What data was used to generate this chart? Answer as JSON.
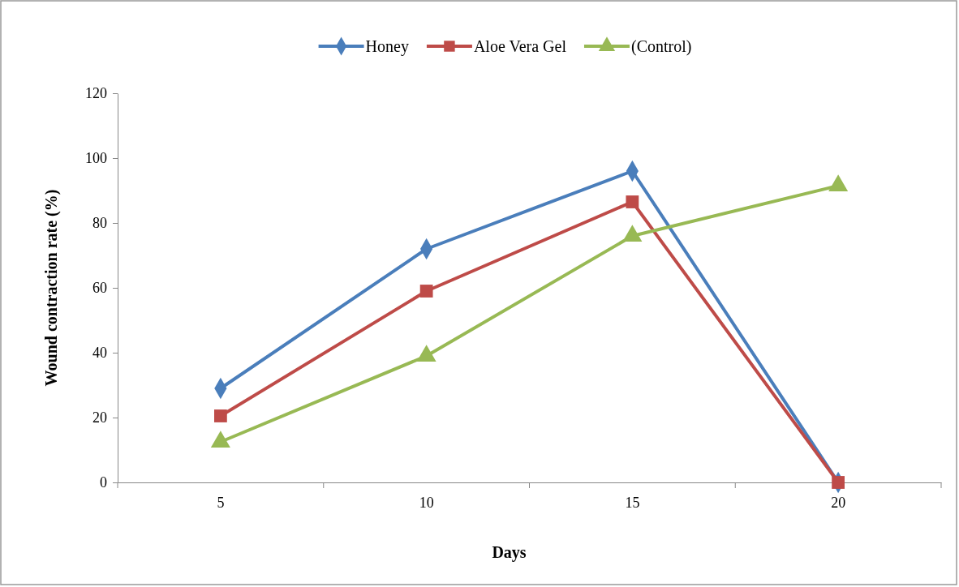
{
  "chart_data": {
    "type": "line",
    "xlabel": "Days",
    "ylabel": "Wound contraction rate (%)",
    "categories": [
      "5",
      "10",
      "15",
      "20"
    ],
    "series": [
      {
        "name": "Honey",
        "color": "#4a7ebb",
        "marker": "diamond",
        "values": [
          29,
          72,
          96,
          0
        ]
      },
      {
        "name": "Aloe Vera Gel",
        "color": "#be4b48",
        "marker": "square",
        "values": [
          20.5,
          59,
          86.5,
          0
        ]
      },
      {
        "name": "(Control)",
        "color": "#98b954",
        "marker": "triangle",
        "values": [
          12.5,
          39,
          76,
          91.5
        ]
      }
    ],
    "ylim": [
      0,
      120
    ],
    "yticks": [
      0,
      20,
      40,
      60,
      80,
      100,
      120
    ],
    "grid": false,
    "legend": "top"
  }
}
